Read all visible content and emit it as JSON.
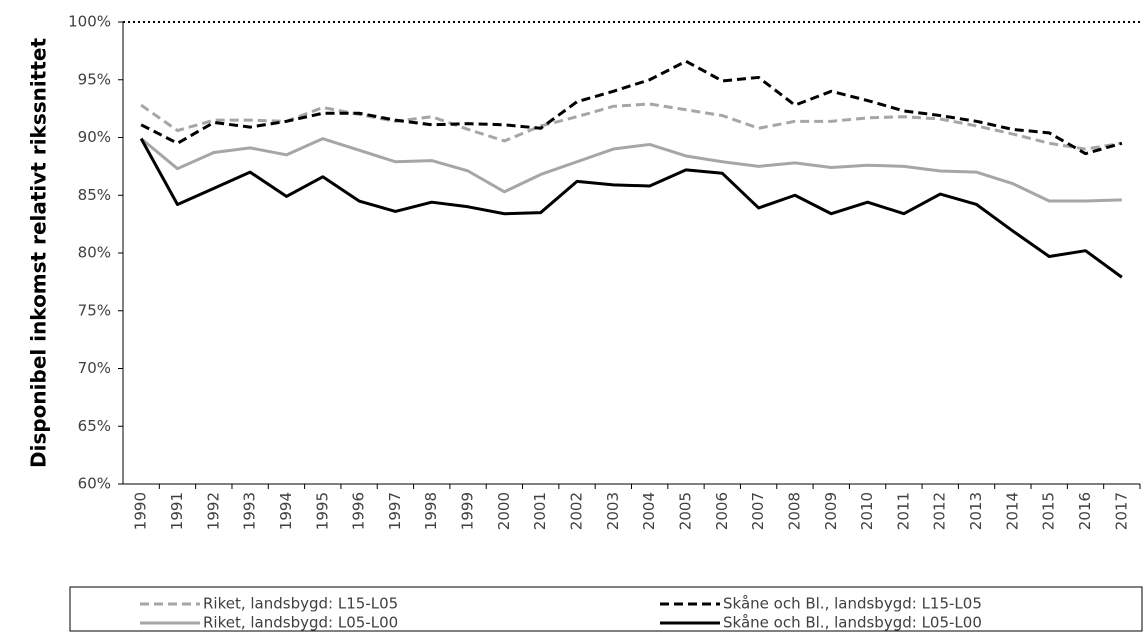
{
  "chart_data": {
    "type": "line",
    "y_label": "Disponibel inkomst relativt rikssnittet",
    "categories": [
      "1990",
      "1991",
      "1992",
      "1993",
      "1994",
      "1995",
      "1996",
      "1997",
      "1998",
      "1999",
      "2000",
      "2001",
      "2002",
      "2003",
      "2004",
      "2005",
      "2006",
      "2007",
      "2008",
      "2009",
      "2010",
      "2011",
      "2012",
      "2013",
      "2014",
      "2015",
      "2016",
      "2017"
    ],
    "series": [
      {
        "name": "Riket, landsbygd: L15-L05",
        "color": "#a6a6a6",
        "style": "dashed",
        "values": [
          92.8,
          90.6,
          91.5,
          91.5,
          91.4,
          92.6,
          92.0,
          91.4,
          91.8,
          90.7,
          89.7,
          91.0,
          91.8,
          92.7,
          92.9,
          92.4,
          91.9,
          90.8,
          91.4,
          91.4,
          91.7,
          91.8,
          91.6,
          91.0,
          90.3,
          89.5,
          89.0,
          89.5
        ]
      },
      {
        "name": "Skåne och Bl., landsbygd: L15-L05",
        "color": "#000000",
        "style": "dashed",
        "values": [
          91.1,
          89.5,
          91.3,
          90.9,
          91.4,
          92.1,
          92.1,
          91.5,
          91.1,
          91.2,
          91.1,
          90.8,
          93.1,
          94.0,
          95.0,
          96.6,
          94.9,
          95.2,
          92.8,
          94.0,
          93.2,
          92.3,
          91.9,
          91.4,
          90.7,
          90.4,
          88.6,
          89.5
        ]
      },
      {
        "name": "Riket, landsbygd: L05-L00",
        "color": "#a6a6a6",
        "style": "solid",
        "values": [
          89.9,
          87.3,
          88.7,
          89.1,
          88.5,
          89.9,
          88.9,
          87.9,
          88.0,
          87.1,
          85.3,
          86.8,
          87.9,
          89.0,
          89.4,
          88.4,
          87.9,
          87.5,
          87.8,
          87.4,
          87.6,
          87.5,
          87.1,
          87.0,
          86.0,
          84.5,
          84.5,
          84.6
        ]
      },
      {
        "name": "Skåne och Bl., landsbygd: L05-L00",
        "color": "#000000",
        "style": "solid",
        "values": [
          89.9,
          84.2,
          85.6,
          87.0,
          84.9,
          86.6,
          84.5,
          83.6,
          84.4,
          84.0,
          83.4,
          83.5,
          86.2,
          85.9,
          85.8,
          87.2,
          86.9,
          83.9,
          85.0,
          83.4,
          84.4,
          83.4,
          85.1,
          84.2,
          81.9,
          79.7,
          80.2,
          77.9
        ]
      }
    ],
    "ylim": [
      60,
      100
    ],
    "yticks": [
      {
        "value": 60,
        "label": "60%"
      },
      {
        "value": 65,
        "label": "65%"
      },
      {
        "value": 70,
        "label": "70%"
      },
      {
        "value": 75,
        "label": "75%"
      },
      {
        "value": 80,
        "label": "80%"
      },
      {
        "value": 85,
        "label": "85%"
      },
      {
        "value": 90,
        "label": "90%"
      },
      {
        "value": 95,
        "label": "95%"
      },
      {
        "value": 100,
        "label": "100%"
      }
    ],
    "hline": 100,
    "grid": false,
    "legend": "bottom"
  }
}
